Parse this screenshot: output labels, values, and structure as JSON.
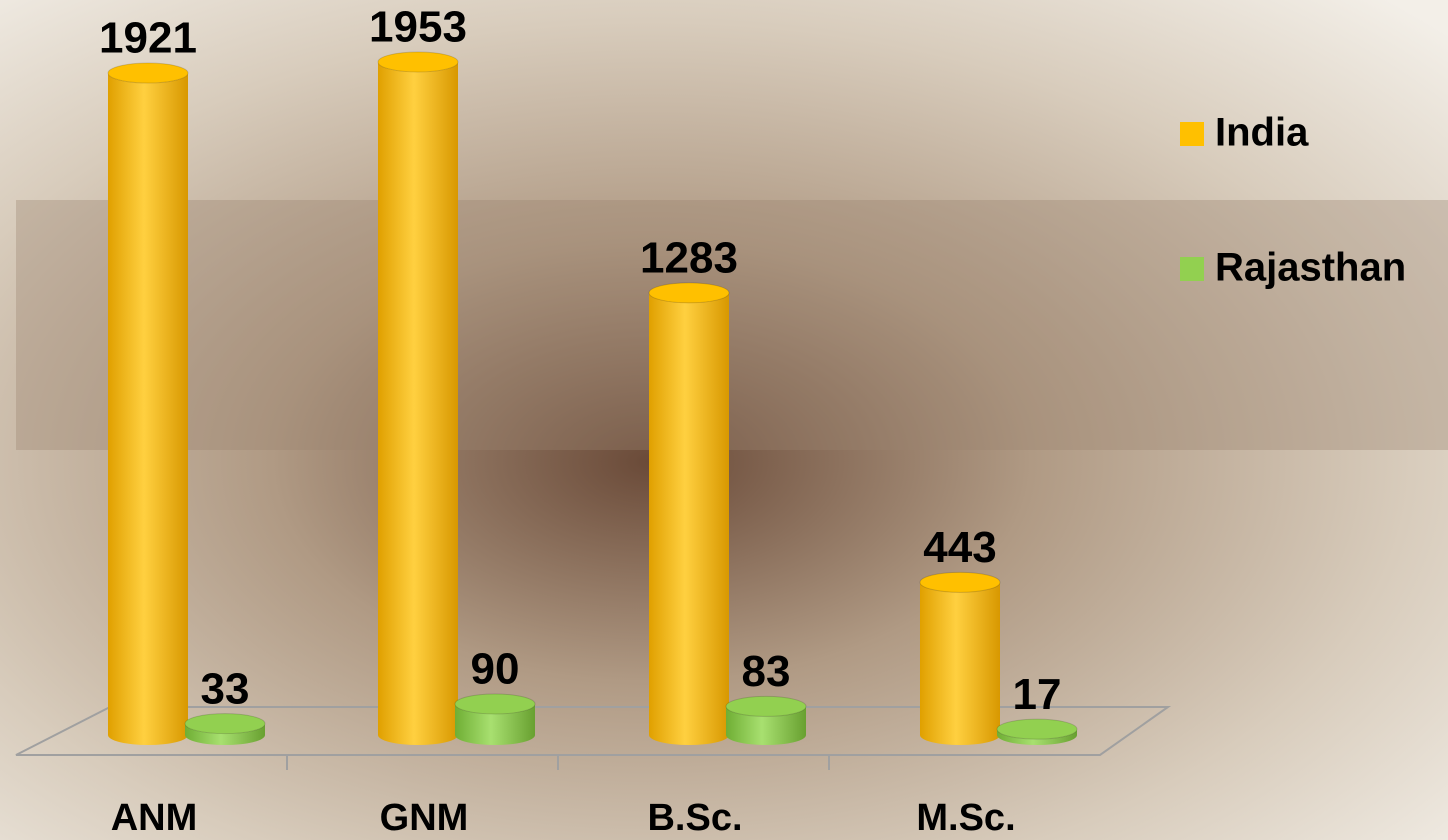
{
  "chart_data": {
    "type": "bar3d",
    "categories": [
      "ANM",
      "GNM",
      "B.Sc.",
      "M.Sc."
    ],
    "series": [
      {
        "name": "India",
        "color": "#ffc000",
        "values": [
          1921,
          1953,
          1283,
          443
        ]
      },
      {
        "name": "Rajasthan",
        "color": "#92d050",
        "values": [
          33,
          90,
          83,
          17
        ]
      }
    ]
  }
}
